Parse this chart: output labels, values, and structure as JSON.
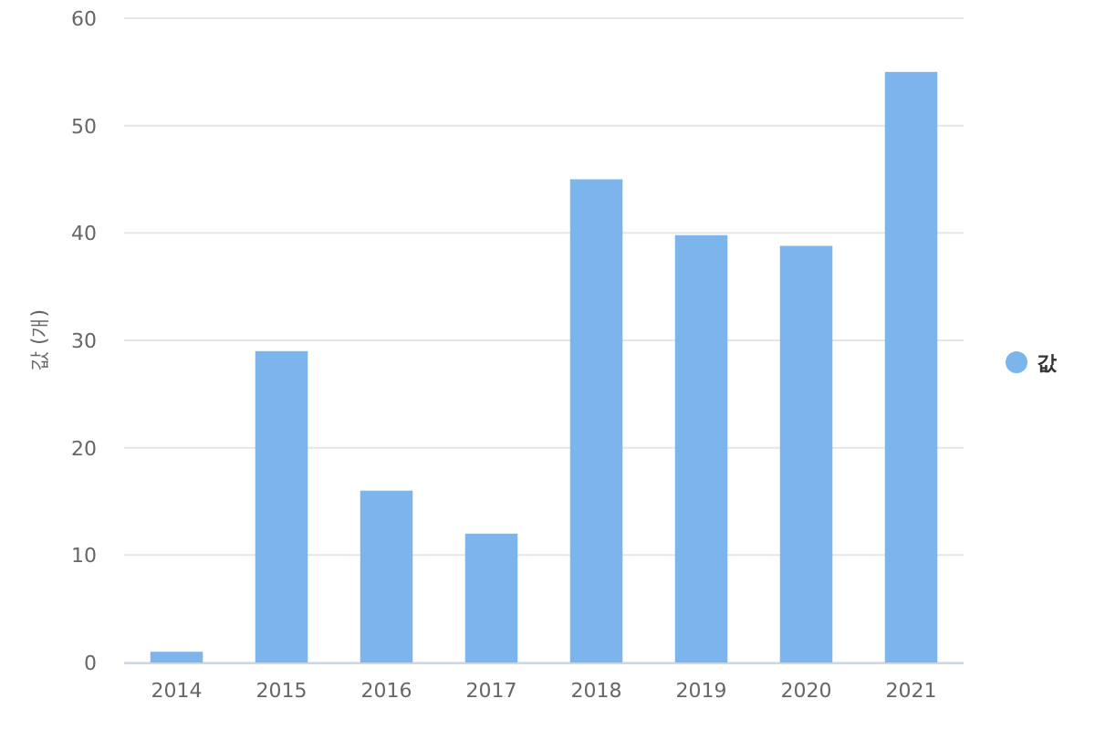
{
  "chart_data": {
    "type": "bar",
    "ylabel": "값 (개)",
    "categories": [
      "2014",
      "2015",
      "2016",
      "2017",
      "2018",
      "2019",
      "2020",
      "2021"
    ],
    "series": [
      {
        "name": "값",
        "color": "#7cb5ec",
        "values": [
          1,
          29,
          16,
          12,
          45,
          39.8,
          38.8,
          55
        ]
      }
    ],
    "ylim": [
      0,
      60
    ],
    "yticks": [
      0,
      10,
      20,
      30,
      40,
      50,
      60
    ],
    "grid": "y",
    "legend": "right"
  }
}
